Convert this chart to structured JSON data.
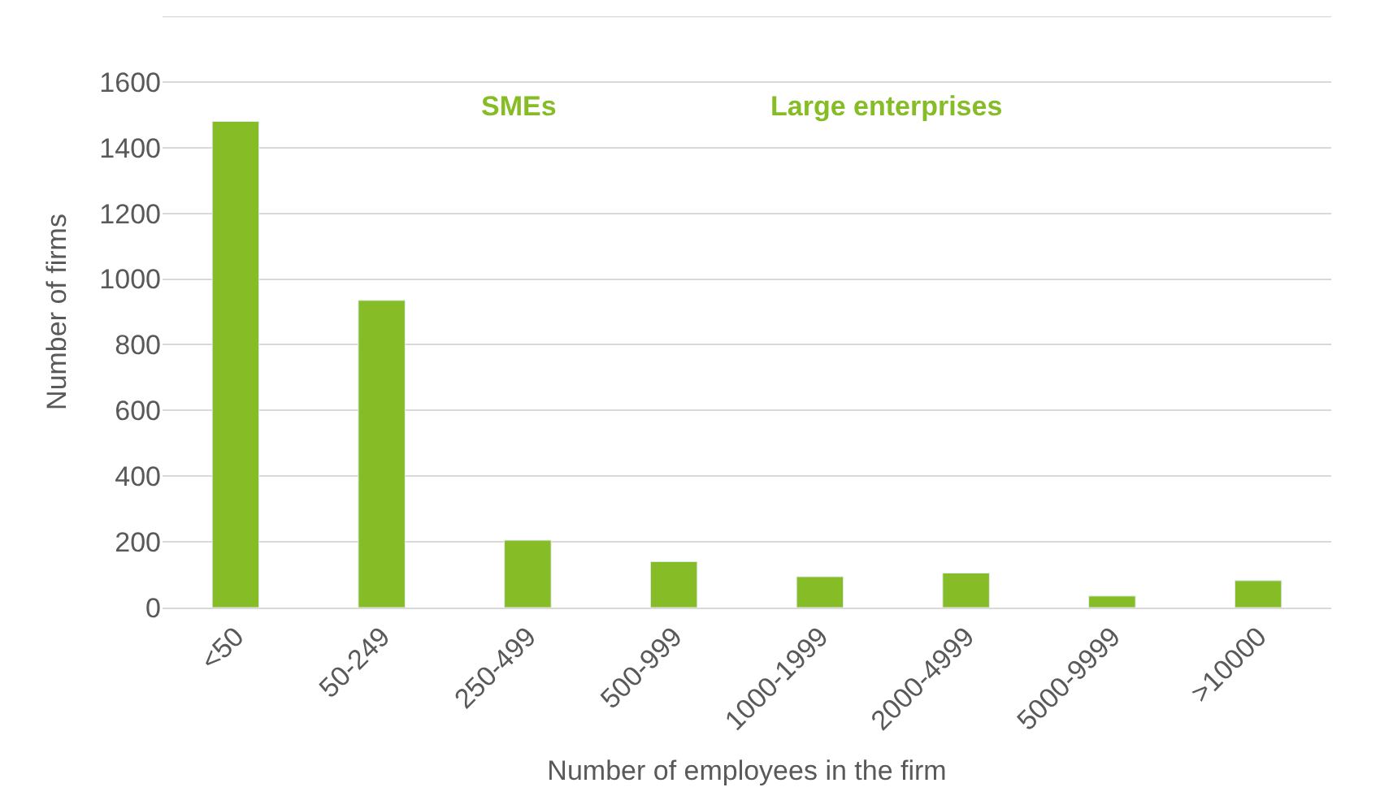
{
  "chart_data": {
    "type": "bar",
    "categories": [
      "<50",
      "50-249",
      "250-499",
      "500-999",
      "1000-1999",
      "2000-4999",
      "5000-9999",
      ">10000"
    ],
    "values": [
      1480,
      935,
      205,
      140,
      94,
      105,
      35,
      82
    ],
    "color": "#86bc25",
    "xlabel": "Number of employees in the firm",
    "ylabel": "Number of firms",
    "ylim": [
      0,
      1800
    ],
    "yticks": [
      0,
      200,
      400,
      600,
      800,
      1000,
      1200,
      1400,
      1600,
      {
        "value": 1800,
        "label": null
      }
    ],
    "grid": "y",
    "annotations": [
      "SMEs",
      "Large enterprises"
    ]
  }
}
